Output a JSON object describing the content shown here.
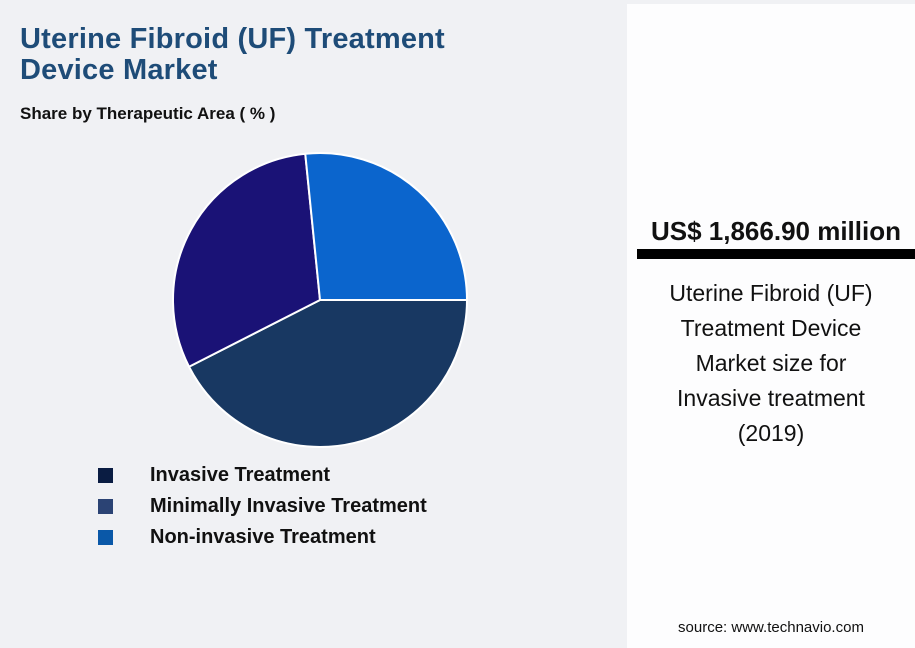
{
  "header": {
    "title_line1": "Uterine Fibroid (UF) Treatment",
    "title_line2": "Device Market",
    "subtitle": "Share by Therapeutic Area ( % )"
  },
  "chart_data": {
    "type": "pie",
    "title": "Share by Therapeutic Area ( % )",
    "unit": "%",
    "start_angle_deg": 90,
    "direction": "clockwise",
    "labels_shown": false,
    "legend_position": "bottom-left",
    "slices": [
      {
        "label": "Invasive Treatment",
        "value_pct": 42.5,
        "arc_deg": 153,
        "color": "#183862"
      },
      {
        "label": "Minimally Invasive Treatment",
        "value_pct": 30.9,
        "arc_deg": 111,
        "color": "#1a1276"
      },
      {
        "label": "Non-invasive Treatment",
        "value_pct": 26.6,
        "arc_deg": 96,
        "color": "#0b65cd"
      }
    ]
  },
  "legend": {
    "items": [
      {
        "label": "Invasive Treatment",
        "swatch_color": "#0a1c42"
      },
      {
        "label": "Minimally Invasive Treatment",
        "swatch_color": "#2b4374"
      },
      {
        "label": "Non-invasive Treatment",
        "swatch_color": "#0a58a8"
      }
    ]
  },
  "panel": {
    "headline_value": "US$ 1,866.90 million",
    "description": "Uterine Fibroid (UF) Treatment Device Market size for Invasive treatment (2019)",
    "source": "source: www.technavio.com",
    "divider_color": "#000000",
    "background": "#fdfdfe"
  },
  "colors": {
    "page_background": "#f0f1f4",
    "title_text": "#1e4c78",
    "body_text": "#111111"
  }
}
